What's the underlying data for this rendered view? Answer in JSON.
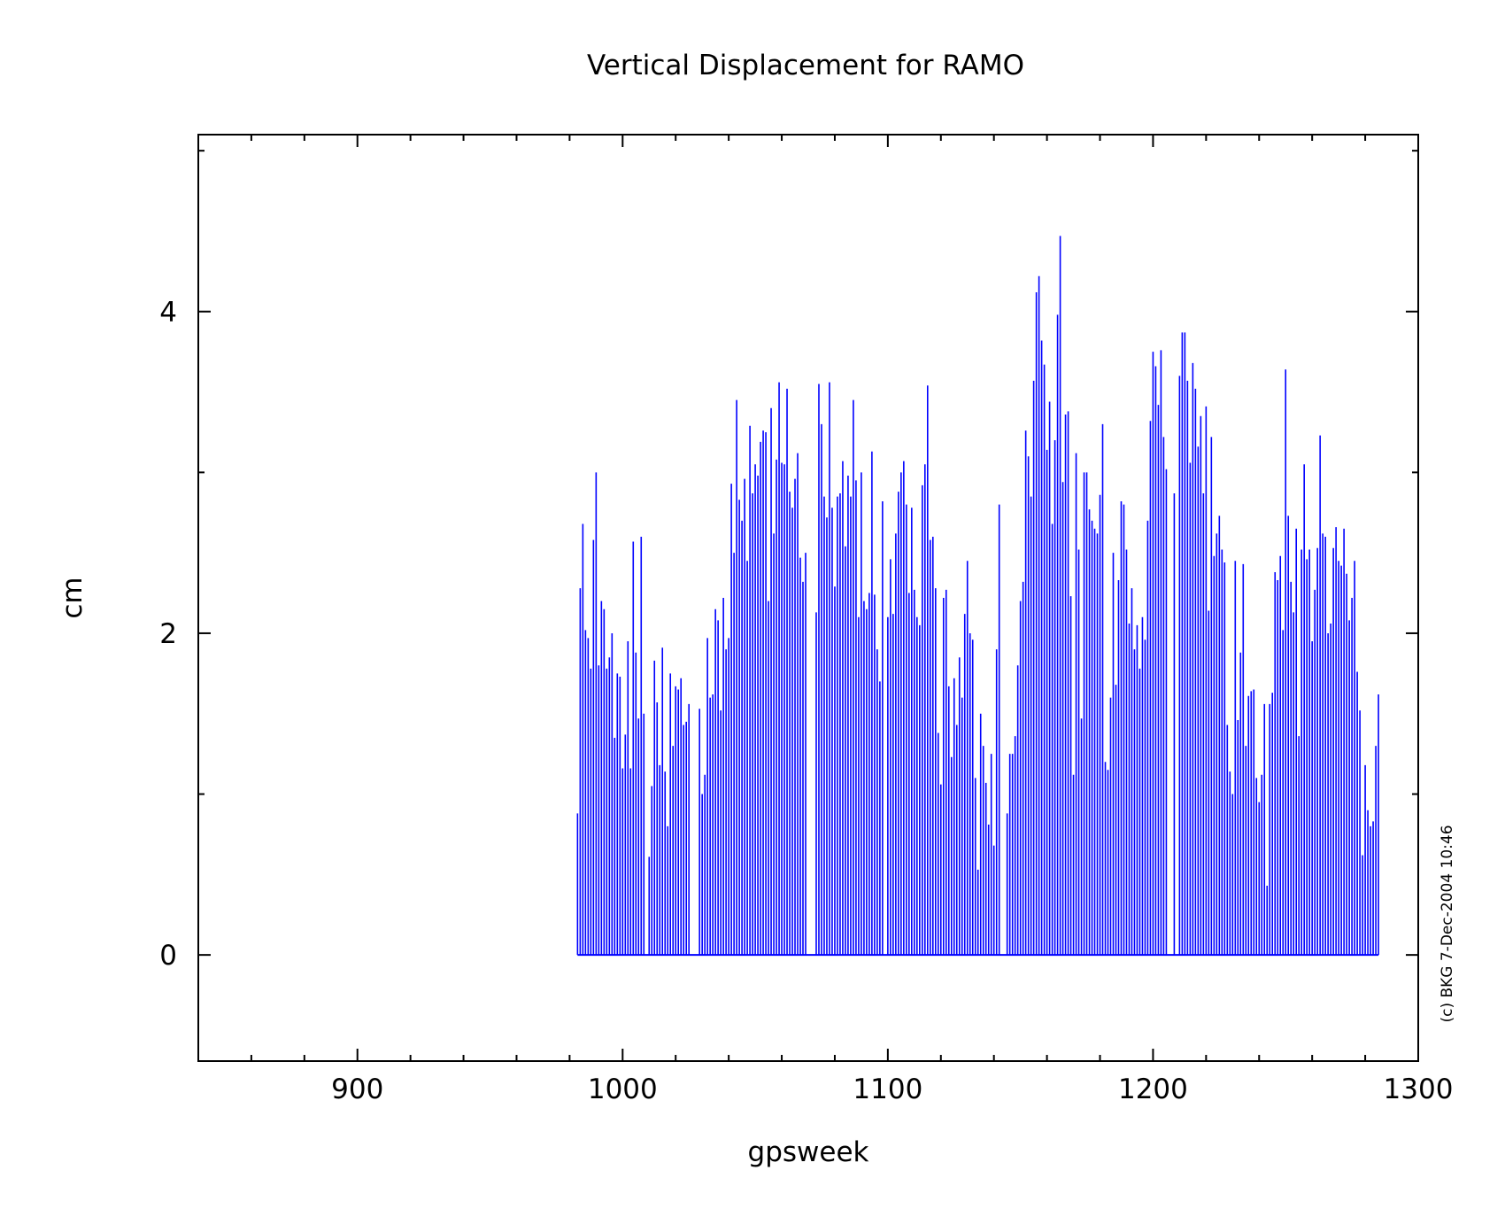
{
  "chart_data": {
    "type": "bar",
    "title": "Vertical Displacement for RAMO",
    "xlabel": "gpsweek",
    "ylabel": "cm",
    "xlim": [
      840,
      1300
    ],
    "ylim": [
      -0.66,
      5.1
    ],
    "x_ticks": [
      900,
      1000,
      1100,
      1200,
      1300
    ],
    "x_tick_labels": [
      "900",
      "1000",
      "1100",
      "1200",
      "1300"
    ],
    "y_ticks": [
      0,
      2,
      4
    ],
    "y_tick_labels": [
      "0",
      "2",
      "4"
    ],
    "x_minor_step": 20,
    "y_minor_step": 1,
    "grid": false,
    "legend": "none",
    "series": [
      {
        "color": "#0000ff",
        "x_start": 983,
        "x_step": 1,
        "values": [
          0.88,
          2.28,
          2.68,
          2.02,
          1.97,
          1.78,
          2.58,
          3.0,
          1.8,
          2.2,
          2.15,
          1.78,
          1.85,
          2.0,
          1.35,
          1.75,
          1.73,
          1.16,
          1.37,
          1.95,
          1.16,
          2.57,
          1.88,
          1.47,
          2.6,
          1.5,
          0,
          0.61,
          1.05,
          1.83,
          1.57,
          1.18,
          1.91,
          1.14,
          0.8,
          1.75,
          1.3,
          1.67,
          1.65,
          1.72,
          1.43,
          1.45,
          1.56,
          0,
          0,
          0,
          1.53,
          1.0,
          1.12,
          1.97,
          1.6,
          1.62,
          2.15,
          2.08,
          1.52,
          2.22,
          1.9,
          1.97,
          2.93,
          2.5,
          3.45,
          2.83,
          2.7,
          2.96,
          2.45,
          3.29,
          2.87,
          3.05,
          2.98,
          3.19,
          3.26,
          3.25,
          2.2,
          3.4,
          2.62,
          3.08,
          3.56,
          3.06,
          3.05,
          3.52,
          2.88,
          2.78,
          2.96,
          3.12,
          2.47,
          2.32,
          2.5,
          0,
          0,
          0,
          2.13,
          3.55,
          3.3,
          2.85,
          2.72,
          3.56,
          2.78,
          2.29,
          2.85,
          2.87,
          3.07,
          2.54,
          2.98,
          2.85,
          3.45,
          2.95,
          2.1,
          3.0,
          2.2,
          2.15,
          2.25,
          3.13,
          2.24,
          1.9,
          1.7,
          2.82,
          0,
          2.1,
          2.46,
          2.12,
          2.62,
          2.88,
          3.0,
          3.07,
          2.8,
          2.25,
          2.78,
          2.27,
          2.1,
          2.05,
          2.92,
          3.05,
          3.54,
          2.58,
          2.6,
          2.28,
          1.38,
          1.06,
          2.22,
          2.27,
          1.67,
          1.23,
          1.72,
          1.43,
          1.85,
          1.6,
          2.12,
          2.45,
          2.0,
          1.96,
          1.1,
          0.53,
          1.5,
          1.3,
          1.07,
          0.81,
          1.25,
          0.68,
          1.9,
          2.8,
          0,
          0,
          0.88,
          1.25,
          1.25,
          1.36,
          1.8,
          2.2,
          2.32,
          3.26,
          3.1,
          2.85,
          3.57,
          4.12,
          4.22,
          3.82,
          3.67,
          3.14,
          3.44,
          2.68,
          3.2,
          3.98,
          4.47,
          2.94,
          3.36,
          3.38,
          2.23,
          1.12,
          3.12,
          2.52,
          1.47,
          3.0,
          3.0,
          2.77,
          2.7,
          2.65,
          2.62,
          2.86,
          3.3,
          1.2,
          1.15,
          1.6,
          2.5,
          1.68,
          2.33,
          2.82,
          2.8,
          2.52,
          2.06,
          2.28,
          1.9,
          2.05,
          1.78,
          2.1,
          1.96,
          2.7,
          3.32,
          3.75,
          3.66,
          3.42,
          3.76,
          3.22,
          3.02,
          0,
          0,
          2.87,
          0,
          3.6,
          3.87,
          3.87,
          3.57,
          3.06,
          3.68,
          3.52,
          3.16,
          3.35,
          2.87,
          3.41,
          2.14,
          3.22,
          2.48,
          2.62,
          2.73,
          2.52,
          2.44,
          1.43,
          1.14,
          1.0,
          2.45,
          1.46,
          1.88,
          2.43,
          1.3,
          1.61,
          1.64,
          1.65,
          1.1,
          0.95,
          1.12,
          1.56,
          0.43,
          1.56,
          1.63,
          2.38,
          2.33,
          2.48,
          2.02,
          3.64,
          2.73,
          2.32,
          2.13,
          2.65,
          1.36,
          2.52,
          3.05,
          2.46,
          2.52,
          1.95,
          2.27,
          2.53,
          3.23,
          2.62,
          2.6,
          2.0,
          2.06,
          2.53,
          2.66,
          2.45,
          2.42,
          2.65,
          2.37,
          2.08,
          2.22,
          2.45,
          1.76,
          1.52,
          0.62,
          1.18,
          0.9,
          0.8,
          0.83,
          1.3,
          1.62
        ]
      }
    ],
    "annotation": "(c) BKG 7-Dec-2004 10:46"
  }
}
